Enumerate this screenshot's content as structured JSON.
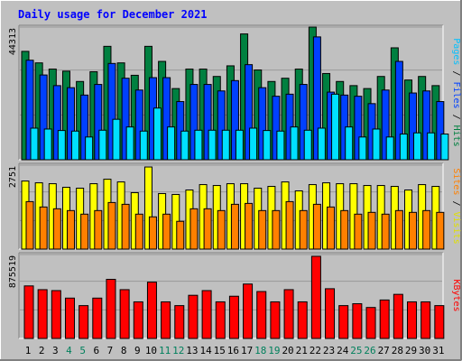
{
  "title": "Daily usage for December 2021",
  "colors": {
    "background": "#c0c0c0",
    "plot_background": "#c0c0c0",
    "title": "#0000ff",
    "hits": "#008040",
    "files": "#0040ff",
    "pages": "#00e0ff",
    "visits": "#ffff00",
    "sites": "#ff8000",
    "kbytes": "#ff0000",
    "weekend_label": "#00805c",
    "weekday_label": "#000000"
  },
  "chart_data": [
    {
      "type": "bar",
      "panel": "hits_files_pages",
      "ymax_label": "44313",
      "ylim": [
        0,
        44313
      ],
      "right_label": [
        {
          "text": "Pages",
          "color": "#00c0ff"
        },
        {
          "text": " / ",
          "color": "#000000"
        },
        {
          "text": "Files",
          "color": "#0040ff"
        },
        {
          "text": " / ",
          "color": "#000000"
        },
        {
          "text": "Hits",
          "color": "#008040"
        }
      ],
      "categories": [
        "1",
        "2",
        "3",
        "4",
        "5",
        "6",
        "7",
        "8",
        "9",
        "10",
        "11",
        "12",
        "13",
        "14",
        "15",
        "16",
        "17",
        "18",
        "19",
        "20",
        "21",
        "22",
        "23",
        "24",
        "25",
        "26",
        "27",
        "28",
        "29",
        "30",
        "31"
      ],
      "series": [
        {
          "name": "Hits",
          "color": "#008040",
          "values": [
            36700,
            32800,
            30700,
            30000,
            26500,
            29800,
            38400,
            32800,
            28600,
            38400,
            33300,
            24100,
            30700,
            30700,
            28200,
            31800,
            42600,
            30400,
            26500,
            27600,
            30700,
            45700,
            29200,
            26500,
            25100,
            24100,
            28200,
            37900,
            27000,
            28200,
            25100
          ]
        },
        {
          "name": "Files",
          "color": "#0040ff",
          "values": [
            33700,
            28700,
            25100,
            24400,
            21900,
            25500,
            32600,
            27600,
            23600,
            27800,
            27800,
            19700,
            25500,
            25500,
            23300,
            26800,
            32200,
            24400,
            21500,
            22200,
            25500,
            41600,
            22900,
            21900,
            21500,
            19000,
            23600,
            33300,
            22600,
            23300,
            19700
          ]
        },
        {
          "name": "Pages",
          "color": "#00e0ff",
          "values": [
            10700,
            10400,
            9900,
            9700,
            7700,
            10000,
            13700,
            11100,
            9700,
            17500,
            11100,
            9700,
            10000,
            10000,
            10000,
            10000,
            10700,
            9900,
            9700,
            11100,
            10000,
            10700,
            22200,
            11100,
            7700,
            10400,
            7700,
            8700,
            9100,
            9100,
            8700
          ]
        }
      ]
    },
    {
      "type": "bar",
      "panel": "visits_sites",
      "ymax_label": "2751",
      "ylim": [
        0,
        2751
      ],
      "right_label": [
        {
          "text": "Sites",
          "color": "#ff8000"
        },
        {
          "text": " / ",
          "color": "#000000"
        },
        {
          "text": "Visits",
          "color": "#e0e000"
        }
      ],
      "categories": [
        "1",
        "2",
        "3",
        "4",
        "5",
        "6",
        "7",
        "8",
        "9",
        "10",
        "11",
        "12",
        "13",
        "14",
        "15",
        "16",
        "17",
        "18",
        "19",
        "20",
        "21",
        "22",
        "23",
        "24",
        "25",
        "26",
        "27",
        "28",
        "29",
        "30",
        "31"
      ],
      "series": [
        {
          "name": "Visits",
          "color": "#ffff00",
          "values": [
            2280,
            2220,
            2190,
            2070,
            2040,
            2190,
            2340,
            2250,
            1890,
            2750,
            1860,
            1830,
            1980,
            2160,
            2130,
            2190,
            2190,
            2040,
            2100,
            2250,
            1950,
            2160,
            2220,
            2190,
            2190,
            2130,
            2130,
            2100,
            1980,
            2160,
            2100
          ]
        },
        {
          "name": "Sites",
          "color": "#ff8000",
          "values": [
            1590,
            1410,
            1350,
            1290,
            1170,
            1290,
            1560,
            1500,
            1170,
            1080,
            1170,
            930,
            1350,
            1350,
            1290,
            1500,
            1530,
            1290,
            1290,
            1590,
            1290,
            1500,
            1410,
            1290,
            1170,
            1230,
            1170,
            1290,
            1230,
            1290,
            1230
          ]
        }
      ]
    },
    {
      "type": "bar",
      "panel": "kbytes",
      "ymax_label": "875519",
      "ylim": [
        0,
        875519
      ],
      "right_label": [
        {
          "text": "KBytes",
          "color": "#ff0000"
        }
      ],
      "categories": [
        "1",
        "2",
        "3",
        "4",
        "5",
        "6",
        "7",
        "8",
        "9",
        "10",
        "11",
        "12",
        "13",
        "14",
        "15",
        "16",
        "17",
        "18",
        "19",
        "20",
        "21",
        "22",
        "23",
        "24",
        "25",
        "26",
        "27",
        "28",
        "29",
        "30",
        "31"
      ],
      "series": [
        {
          "name": "KBytes",
          "color": "#ff0000",
          "values": [
            560000,
            520000,
            510000,
            430000,
            350000,
            430000,
            630000,
            520000,
            390000,
            600000,
            390000,
            350000,
            460000,
            510000,
            390000,
            450000,
            580000,
            500000,
            390000,
            520000,
            390000,
            875519,
            530000,
            350000,
            370000,
            330000,
            410000,
            470000,
            390000,
            390000,
            350000
          ]
        }
      ]
    }
  ],
  "x_axis": {
    "labels": [
      "1",
      "2",
      "3",
      "4",
      "5",
      "6",
      "7",
      "8",
      "9",
      "10",
      "11",
      "12",
      "13",
      "14",
      "15",
      "16",
      "17",
      "18",
      "19",
      "20",
      "21",
      "22",
      "23",
      "24",
      "25",
      "26",
      "27",
      "28",
      "29",
      "30",
      "31"
    ],
    "weekend_days": [
      "4",
      "5",
      "11",
      "12",
      "18",
      "19",
      "25",
      "26"
    ]
  }
}
